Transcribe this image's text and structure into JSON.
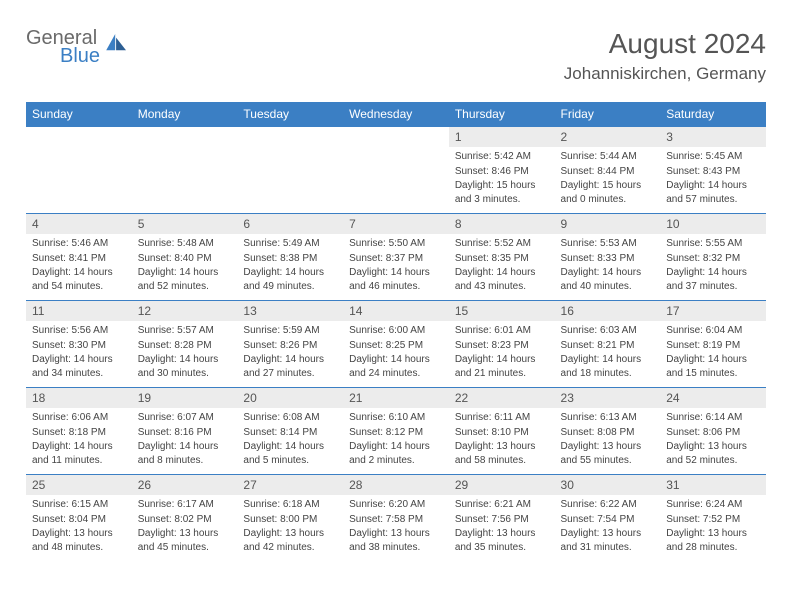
{
  "logo": {
    "line1": "General",
    "line2": "Blue"
  },
  "header": {
    "title": "August 2024",
    "location": "Johanniskirchen, Germany"
  },
  "colors": {
    "header_bg": "#3b7fc4",
    "header_text": "#ffffff",
    "daynum_bg": "#ececec",
    "text": "#444444",
    "title": "#555555"
  },
  "days_of_week": [
    "Sunday",
    "Monday",
    "Tuesday",
    "Wednesday",
    "Thursday",
    "Friday",
    "Saturday"
  ],
  "weeks": [
    [
      null,
      null,
      null,
      null,
      {
        "n": "1",
        "sr": "5:42 AM",
        "ss": "8:46 PM",
        "dl": "15 hours and 3 minutes."
      },
      {
        "n": "2",
        "sr": "5:44 AM",
        "ss": "8:44 PM",
        "dl": "15 hours and 0 minutes."
      },
      {
        "n": "3",
        "sr": "5:45 AM",
        "ss": "8:43 PM",
        "dl": "14 hours and 57 minutes."
      }
    ],
    [
      {
        "n": "4",
        "sr": "5:46 AM",
        "ss": "8:41 PM",
        "dl": "14 hours and 54 minutes."
      },
      {
        "n": "5",
        "sr": "5:48 AM",
        "ss": "8:40 PM",
        "dl": "14 hours and 52 minutes."
      },
      {
        "n": "6",
        "sr": "5:49 AM",
        "ss": "8:38 PM",
        "dl": "14 hours and 49 minutes."
      },
      {
        "n": "7",
        "sr": "5:50 AM",
        "ss": "8:37 PM",
        "dl": "14 hours and 46 minutes."
      },
      {
        "n": "8",
        "sr": "5:52 AM",
        "ss": "8:35 PM",
        "dl": "14 hours and 43 minutes."
      },
      {
        "n": "9",
        "sr": "5:53 AM",
        "ss": "8:33 PM",
        "dl": "14 hours and 40 minutes."
      },
      {
        "n": "10",
        "sr": "5:55 AM",
        "ss": "8:32 PM",
        "dl": "14 hours and 37 minutes."
      }
    ],
    [
      {
        "n": "11",
        "sr": "5:56 AM",
        "ss": "8:30 PM",
        "dl": "14 hours and 34 minutes."
      },
      {
        "n": "12",
        "sr": "5:57 AM",
        "ss": "8:28 PM",
        "dl": "14 hours and 30 minutes."
      },
      {
        "n": "13",
        "sr": "5:59 AM",
        "ss": "8:26 PM",
        "dl": "14 hours and 27 minutes."
      },
      {
        "n": "14",
        "sr": "6:00 AM",
        "ss": "8:25 PM",
        "dl": "14 hours and 24 minutes."
      },
      {
        "n": "15",
        "sr": "6:01 AM",
        "ss": "8:23 PM",
        "dl": "14 hours and 21 minutes."
      },
      {
        "n": "16",
        "sr": "6:03 AM",
        "ss": "8:21 PM",
        "dl": "14 hours and 18 minutes."
      },
      {
        "n": "17",
        "sr": "6:04 AM",
        "ss": "8:19 PM",
        "dl": "14 hours and 15 minutes."
      }
    ],
    [
      {
        "n": "18",
        "sr": "6:06 AM",
        "ss": "8:18 PM",
        "dl": "14 hours and 11 minutes."
      },
      {
        "n": "19",
        "sr": "6:07 AM",
        "ss": "8:16 PM",
        "dl": "14 hours and 8 minutes."
      },
      {
        "n": "20",
        "sr": "6:08 AM",
        "ss": "8:14 PM",
        "dl": "14 hours and 5 minutes."
      },
      {
        "n": "21",
        "sr": "6:10 AM",
        "ss": "8:12 PM",
        "dl": "14 hours and 2 minutes."
      },
      {
        "n": "22",
        "sr": "6:11 AM",
        "ss": "8:10 PM",
        "dl": "13 hours and 58 minutes."
      },
      {
        "n": "23",
        "sr": "6:13 AM",
        "ss": "8:08 PM",
        "dl": "13 hours and 55 minutes."
      },
      {
        "n": "24",
        "sr": "6:14 AM",
        "ss": "8:06 PM",
        "dl": "13 hours and 52 minutes."
      }
    ],
    [
      {
        "n": "25",
        "sr": "6:15 AM",
        "ss": "8:04 PM",
        "dl": "13 hours and 48 minutes."
      },
      {
        "n": "26",
        "sr": "6:17 AM",
        "ss": "8:02 PM",
        "dl": "13 hours and 45 minutes."
      },
      {
        "n": "27",
        "sr": "6:18 AM",
        "ss": "8:00 PM",
        "dl": "13 hours and 42 minutes."
      },
      {
        "n": "28",
        "sr": "6:20 AM",
        "ss": "7:58 PM",
        "dl": "13 hours and 38 minutes."
      },
      {
        "n": "29",
        "sr": "6:21 AM",
        "ss": "7:56 PM",
        "dl": "13 hours and 35 minutes."
      },
      {
        "n": "30",
        "sr": "6:22 AM",
        "ss": "7:54 PM",
        "dl": "13 hours and 31 minutes."
      },
      {
        "n": "31",
        "sr": "6:24 AM",
        "ss": "7:52 PM",
        "dl": "13 hours and 28 minutes."
      }
    ]
  ],
  "labels": {
    "sunrise": "Sunrise:",
    "sunset": "Sunset:",
    "daylight": "Daylight:"
  }
}
